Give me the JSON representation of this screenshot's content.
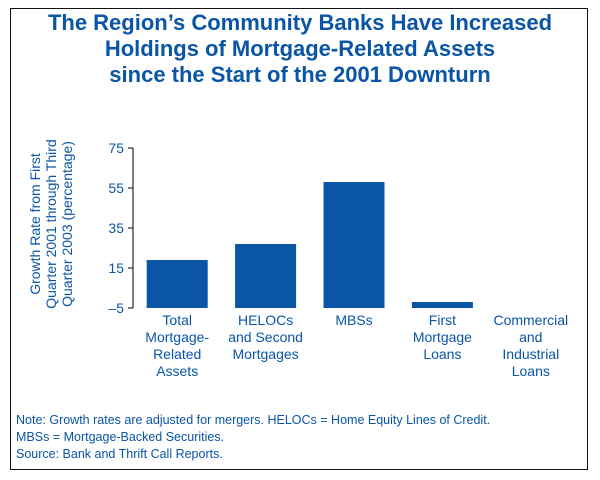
{
  "title": {
    "lines": [
      "The Region’s Community Banks Have Increased",
      "Holdings of Mortgage-Related Assets",
      "since the Start of the 2001 Downturn"
    ]
  },
  "colors": {
    "bar": "#0a55a6",
    "text": "#0a55a6",
    "axis": "#000000",
    "border": "#111111"
  },
  "chart_data": {
    "type": "bar",
    "title": "The Region’s Community Banks Have Increased Holdings of Mortgage-Related Assets since the Start of the 2001 Downturn",
    "ylabel_lines": [
      "Growth Rate from First",
      "Quarter 2001 through Third",
      "Quarter 2003 (percentage)"
    ],
    "xlabel": "",
    "categories": [
      "Total Mortgage-Related Assets",
      "HELOCs and Second Mortgages",
      "MBSs",
      "First Mortgage Loans",
      "Commercial and Industrial Loans"
    ],
    "category_label_lines": [
      [
        "Total",
        "Mortgage-",
        "Related",
        "Assets"
      ],
      [
        "HELOCs",
        "and Second",
        "Mortgages"
      ],
      [
        "MBSs"
      ],
      [
        "First",
        "Mortgage",
        "Loans"
      ],
      [
        "Commercial",
        "and",
        "Industrial",
        "Loans"
      ]
    ],
    "values": [
      19,
      27,
      58,
      -2,
      -5
    ],
    "ylim": [
      -5,
      75
    ],
    "yticks": [
      -5,
      15,
      35,
      55,
      75
    ],
    "ytick_labels": [
      "–5",
      "15",
      "35",
      "55",
      "75"
    ],
    "grid": false,
    "legend": "none"
  },
  "notes": [
    "Note: Growth rates are adjusted for mergers. HELOCs = Home Equity Lines of Credit.",
    "MBSs = Mortgage-Backed Securities.",
    "Source: Bank and Thrift Call Reports."
  ]
}
